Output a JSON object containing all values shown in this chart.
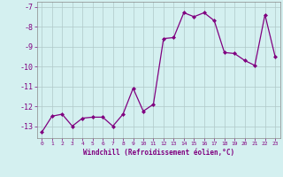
{
  "x": [
    0,
    1,
    2,
    3,
    4,
    5,
    6,
    7,
    8,
    9,
    10,
    11,
    12,
    13,
    14,
    15,
    16,
    17,
    18,
    19,
    20,
    21,
    22,
    23
  ],
  "y": [
    -13.3,
    -12.5,
    -12.4,
    -13.0,
    -12.6,
    -12.55,
    -12.55,
    -13.0,
    -12.4,
    -11.1,
    -12.25,
    -11.9,
    -8.6,
    -8.55,
    -7.3,
    -7.5,
    -7.3,
    -7.7,
    -9.3,
    -9.35,
    -9.7,
    -9.95,
    -7.4,
    -9.5
  ],
  "xlim": [
    -0.5,
    23.5
  ],
  "ylim": [
    -13.6,
    -6.75
  ],
  "yticks": [
    -13,
    -12,
    -11,
    -10,
    -9,
    -8,
    -7
  ],
  "xticks": [
    0,
    1,
    2,
    3,
    4,
    5,
    6,
    7,
    8,
    9,
    10,
    11,
    12,
    13,
    14,
    15,
    16,
    17,
    18,
    19,
    20,
    21,
    22,
    23
  ],
  "xlabel": "Windchill (Refroidissement éolien,°C)",
  "line_color": "#800080",
  "marker_color": "#800080",
  "bg_color": "#d4f0f0",
  "grid_color": "#b0c8c8",
  "font_color": "#800080"
}
